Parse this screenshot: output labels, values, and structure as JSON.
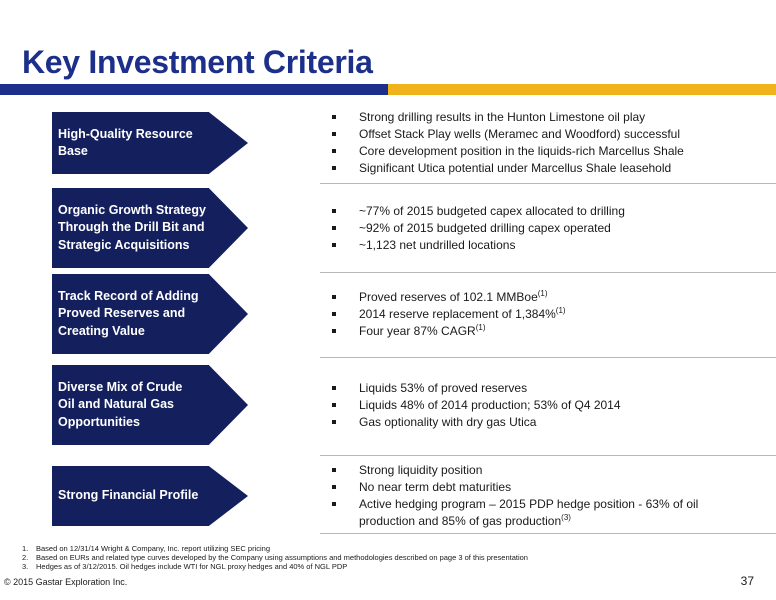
{
  "header": {
    "title": "Key Investment Criteria",
    "colors": {
      "navy": "#1c2f8a",
      "gold": "#f0b31c",
      "chevron": "#14205e"
    }
  },
  "rows": [
    {
      "label": "High-Quality Resource\nBase",
      "bullets": [
        {
          "text": "Strong drilling results in the Hunton Limestone oil play",
          "sup": ""
        },
        {
          "text": "Offset Stack Play wells (Meramec and Woodford) successful",
          "sup": ""
        },
        {
          "text": "Core development position in the liquids-rich Marcellus Shale",
          "sup": ""
        },
        {
          "text": "Significant Utica potential under Marcellus Shale leasehold",
          "sup": ""
        }
      ]
    },
    {
      "label": "Organic Growth Strategy\nThrough the Drill Bit and\nStrategic Acquisitions",
      "bullets": [
        {
          "text": "~77% of 2015 budgeted capex allocated to drilling",
          "sup": ""
        },
        {
          "text": "~92% of 2015 budgeted drilling capex operated",
          "sup": ""
        },
        {
          "text": "~1,123 net undrilled locations",
          "sup": ""
        }
      ]
    },
    {
      "label": "Track Record of Adding\nProved Reserves and\nCreating Value",
      "bullets": [
        {
          "text": "Proved reserves of 102.1 MMBoe",
          "sup": "(1)"
        },
        {
          "text": "2014 reserve replacement of 1,384%",
          "sup": "(1)"
        },
        {
          "text": "Four year 87% CAGR",
          "sup": "(1)"
        }
      ]
    },
    {
      "label": "Diverse Mix of Crude\nOil and Natural Gas\nOpportunities",
      "bullets": [
        {
          "text": "Liquids 53% of proved reserves",
          "sup": ""
        },
        {
          "text": "Liquids 48% of 2014 production; 53% of Q4 2014",
          "sup": ""
        },
        {
          "text": "Gas optionality with dry gas Utica",
          "sup": ""
        }
      ]
    },
    {
      "label": "Strong Financial Profile",
      "bullets": [
        {
          "text": "Strong liquidity position",
          "sup": ""
        },
        {
          "text": "No near term debt maturities",
          "sup": ""
        },
        {
          "text": "Active hedging program – 2015 PDP hedge position - 63% of oil production and 85% of gas production",
          "sup": "(3)"
        }
      ]
    }
  ],
  "footnotes": [
    {
      "num": "1.",
      "text": "Based on 12/31/14 Wright & Company, Inc. report utilizing SEC pricing"
    },
    {
      "num": "2.",
      "text": "Based on EURs and related type curves developed by the Company using assumptions and methodologies described on page 3 of this presentation"
    },
    {
      "num": "3.",
      "text": "Hedges as of 3/12/2015. Oil hedges include WTI for NGL proxy hedges and 40% of NGL PDP"
    }
  ],
  "footer": {
    "copyright": "© 2015 Gastar Exploration Inc.",
    "page_number": "37"
  }
}
